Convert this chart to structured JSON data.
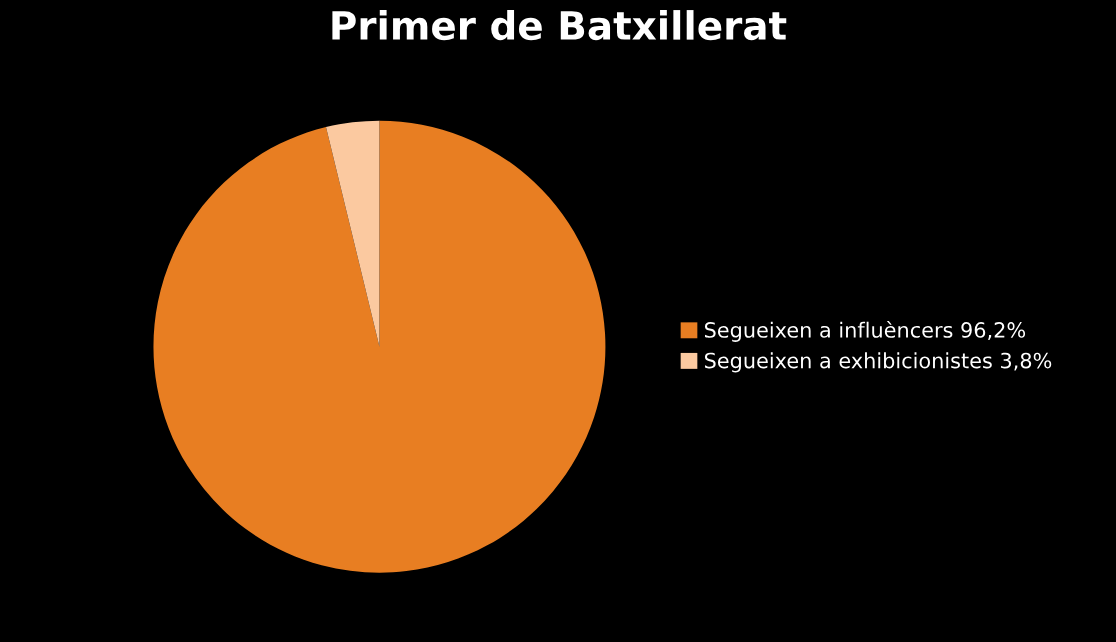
{
  "chart_data": {
    "type": "pie",
    "title": "Primer de Batxillerat",
    "categories": [
      "Segueixen a influèncers 96,2%",
      "Segueixen a exhibicionistes 3,8%"
    ],
    "values": [
      96.2,
      3.8
    ],
    "colors": [
      "#e87e22",
      "#fbc9a0"
    ],
    "legend": "right"
  }
}
